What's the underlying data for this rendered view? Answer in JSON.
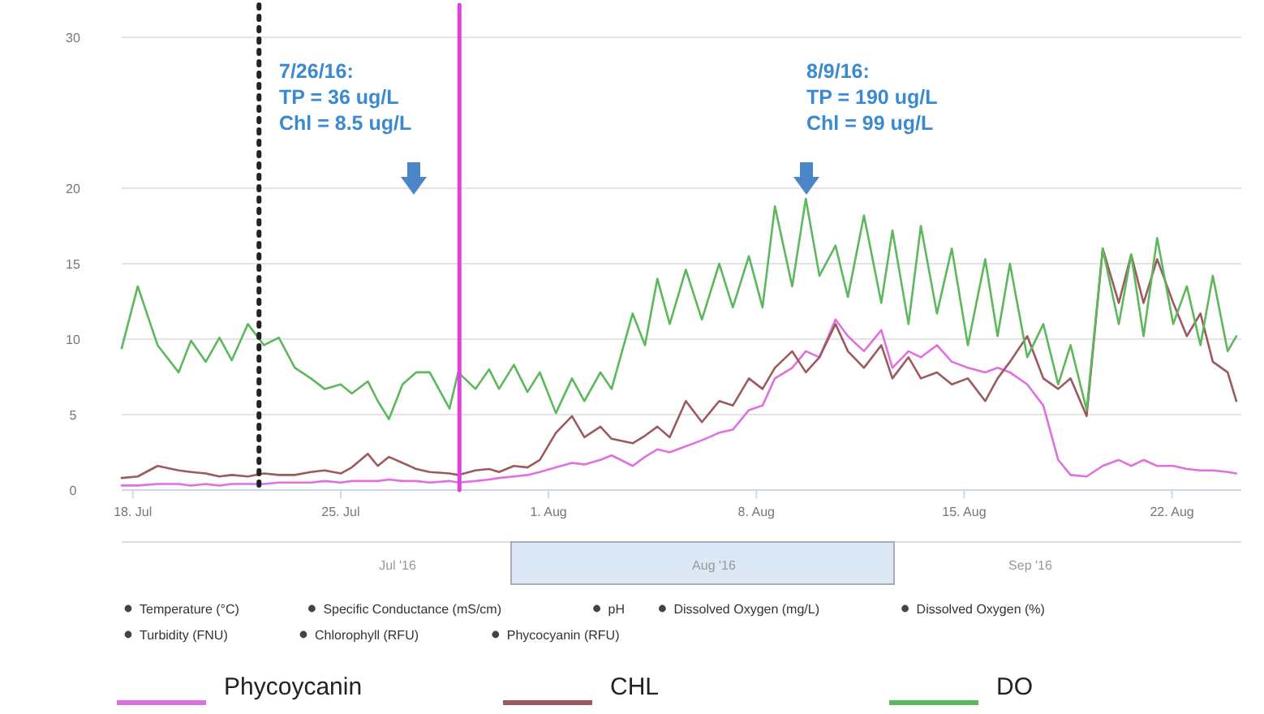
{
  "chart_data": {
    "type": "line",
    "x": [
      "2016-07-17T15:00",
      "2016-07-18T04:00",
      "2016-07-18T20:00",
      "2016-07-19T13:00",
      "2016-07-19T23:00",
      "2016-07-20T11:00",
      "2016-07-20T22:00",
      "2016-07-21T08:00",
      "2016-07-21T21:00",
      "2016-07-22T10:00",
      "2016-07-22T22:00",
      "2016-07-23T11:00",
      "2016-07-24T00:00",
      "2016-07-24T11:00",
      "2016-07-25T00:00",
      "2016-07-25T09:00",
      "2016-07-25T22:00",
      "2016-07-26T06:00",
      "2016-07-26T15:00",
      "2016-07-27T02:00",
      "2016-07-27T13:00",
      "2016-07-28T00:00",
      "2016-07-28T16:00",
      "2016-07-28T23:00",
      "2016-07-29T13:00",
      "2016-07-30T00:00",
      "2016-07-30T08:00",
      "2016-07-30T20:00",
      "2016-07-31T07:00",
      "2016-07-31T17:00",
      "2016-08-01T06:00",
      "2016-08-01T19:00",
      "2016-08-02T05:00",
      "2016-08-02T18:00",
      "2016-08-03T03:00",
      "2016-08-03T20:00",
      "2016-08-04T06:00",
      "2016-08-04T16:00",
      "2016-08-05T02:00",
      "2016-08-05T15:00",
      "2016-08-06T04:00",
      "2016-08-06T18:00",
      "2016-08-07T05:00",
      "2016-08-07T18:00",
      "2016-08-08T05:00",
      "2016-08-08T15:00",
      "2016-08-09T05:00",
      "2016-08-09T16:00",
      "2016-08-10T03:00",
      "2016-08-10T16:00",
      "2016-08-11T02:00",
      "2016-08-11T15:00",
      "2016-08-12T05:00",
      "2016-08-12T14:00",
      "2016-08-13T03:00",
      "2016-08-13T13:00",
      "2016-08-14T02:00",
      "2016-08-14T14:00",
      "2016-08-15T03:00",
      "2016-08-15T17:00",
      "2016-08-16T03:00",
      "2016-08-16T13:00",
      "2016-08-17T03:00",
      "2016-08-17T16:00",
      "2016-08-18T04:00",
      "2016-08-18T14:00",
      "2016-08-19T03:00",
      "2016-08-19T16:00",
      "2016-08-20T05:00",
      "2016-08-20T15:00",
      "2016-08-21T01:00",
      "2016-08-21T12:00",
      "2016-08-22T01:00",
      "2016-08-22T12:00",
      "2016-08-22T23:00",
      "2016-08-23T09:00",
      "2016-08-23T21:00",
      "2016-08-24T04:00"
    ],
    "series": [
      {
        "name": "Phycoycanin",
        "color": "#e070e0",
        "values": [
          0.3,
          0.3,
          0.4,
          0.4,
          0.3,
          0.4,
          0.3,
          0.4,
          0.4,
          0.4,
          0.5,
          0.5,
          0.5,
          0.6,
          0.5,
          0.6,
          0.6,
          0.6,
          0.7,
          0.6,
          0.6,
          0.5,
          0.6,
          0.5,
          0.6,
          0.7,
          0.8,
          0.9,
          1,
          1.2,
          1.5,
          1.8,
          1.7,
          2,
          2.3,
          1.6,
          2.2,
          2.7,
          2.5,
          2.9,
          3.3,
          3.8,
          4,
          5.3,
          5.6,
          7.4,
          8.1,
          9.2,
          8.8,
          11.3,
          10.2,
          9.2,
          10.6,
          8.1,
          9.2,
          8.8,
          9.6,
          8.5,
          8.1,
          7.8,
          8.1,
          7.8,
          7,
          5.6,
          2,
          1,
          0.9,
          1.6,
          2,
          1.6,
          2,
          1.6,
          1.6,
          1.4,
          1.3,
          1.3,
          1.2,
          1.1
        ]
      },
      {
        "name": "CHL",
        "color": "#9c5a5e",
        "values": [
          0.8,
          0.9,
          1.6,
          1.3,
          1.2,
          1.1,
          0.9,
          1,
          0.9,
          1.1,
          1,
          1,
          1.2,
          1.3,
          1.1,
          1.5,
          2.4,
          1.6,
          2.2,
          1.8,
          1.4,
          1.2,
          1.1,
          1,
          1.3,
          1.4,
          1.2,
          1.6,
          1.5,
          2,
          3.8,
          4.9,
          3.5,
          4.2,
          3.4,
          3.1,
          3.6,
          4.2,
          3.5,
          5.9,
          4.5,
          5.9,
          5.6,
          7.4,
          6.7,
          8.1,
          9.2,
          7.8,
          8.8,
          11,
          9.2,
          8.1,
          9.6,
          7.4,
          8.8,
          7.4,
          7.8,
          7,
          7.4,
          5.9,
          7.4,
          8.5,
          10.2,
          7.4,
          6.7,
          7.4,
          4.9,
          16,
          12.4,
          15.6,
          12.4,
          15.3,
          12.4,
          10.2,
          11.7,
          8.5,
          7.8,
          5.9
        ]
      },
      {
        "name": "DO",
        "color": "#5cb85c",
        "values": [
          9.4,
          13.5,
          9.6,
          7.8,
          9.9,
          8.5,
          10.1,
          8.6,
          11,
          9.6,
          10.1,
          8.1,
          7.4,
          6.7,
          7,
          6.4,
          7.2,
          5.9,
          4.7,
          7,
          7.8,
          7.8,
          5.4,
          7.8,
          6.7,
          8,
          6.7,
          8.3,
          6.5,
          7.8,
          5.1,
          7.4,
          5.9,
          7.8,
          6.7,
          11.7,
          9.6,
          14,
          11,
          14.6,
          11.3,
          15,
          12.1,
          15.5,
          12.1,
          18.8,
          13.5,
          19.3,
          14.2,
          16.2,
          12.8,
          18.2,
          12.4,
          17.2,
          11,
          17.5,
          11.7,
          16,
          9.6,
          15.3,
          10.2,
          15,
          8.8,
          11,
          7,
          9.6,
          5.3,
          16,
          11,
          15.6,
          10.2,
          16.7,
          11,
          13.5,
          9.6,
          14.2,
          9.2,
          10.2
        ]
      }
    ],
    "xlim": [
      "2016-07-17T15:00",
      "2016-08-24T08:00"
    ],
    "xticks": [
      {
        "value": "2016-07-18",
        "label": "18. Jul"
      },
      {
        "value": "2016-07-25",
        "label": "25. Jul"
      },
      {
        "value": "2016-08-01",
        "label": "1. Aug"
      },
      {
        "value": "2016-08-08",
        "label": "8. Aug"
      },
      {
        "value": "2016-08-15",
        "label": "15. Aug"
      },
      {
        "value": "2016-08-22",
        "label": "22. Aug"
      }
    ],
    "ylim": [
      0,
      30
    ],
    "yticks": [
      0,
      5,
      10,
      15,
      20,
      30
    ],
    "grid": "y",
    "legend": "bottom",
    "ref_lines": [
      {
        "axis": "x",
        "value": "2016-07-22T06:00",
        "color": "#222222",
        "line_style": "dotted"
      },
      {
        "axis": "x",
        "value": "2016-07-29T00:00",
        "color": "#e040e0",
        "line_style": "solid"
      }
    ],
    "annotations": [
      "7/26/16:\nTP = 36 ug/L\nChl = 8.5 ug/L",
      "8/9/16:\nTP = 190 ug/L\nChl = 99 ug/L",
      "Jul '16",
      "Aug '16",
      "Sep '16",
      "Temperature (°C)",
      "Specific Conductance (mS/cm)",
      "pH",
      "Dissolved Oxygen (mg/L)",
      "Dissolved Oxygen (%)",
      "Turbidity (FNU)",
      "Chlorophyll (RFU)",
      "Phycocyanin (RFU)"
    ]
  }
}
